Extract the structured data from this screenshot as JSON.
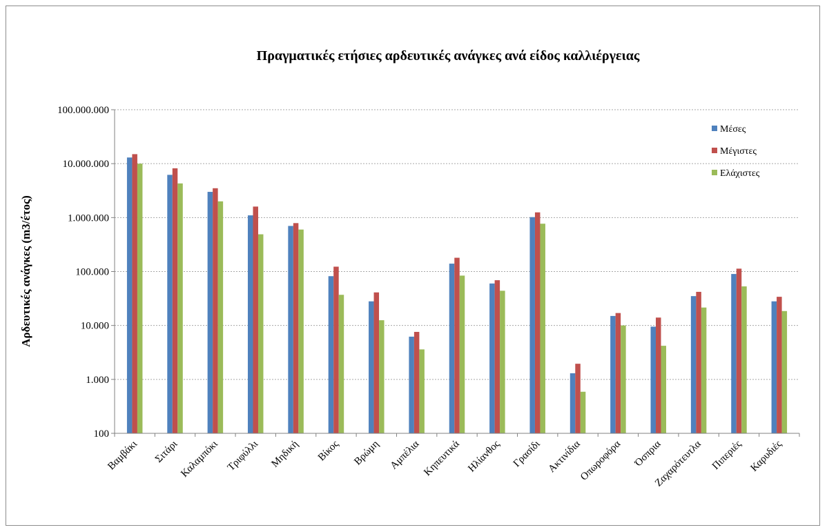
{
  "chart_data": {
    "type": "bar",
    "title": "Πραγματικές ετήσιες αρδευτικές ανάγκες ανά είδος καλλιέργειας",
    "xlabel": "",
    "ylabel": "Αρδευτικές ανάγκες (m3/έτος)",
    "yscale": "log",
    "ylim": [
      100,
      100000000
    ],
    "yticks": [
      100,
      1000,
      10000,
      100000,
      1000000,
      10000000,
      100000000
    ],
    "ytick_labels": [
      "100",
      "1.000",
      "10.000",
      "100.000",
      "1.000.000",
      "10.000.000",
      "100.000.000"
    ],
    "grid": true,
    "legend_position": "top-right",
    "categories": [
      "Βαμβάκι",
      "Σιτάρι",
      "Καλαμπόκι",
      "Τριφύλλι",
      "Μηδική",
      "Βίκος",
      "Βρώμη",
      "Αμπέλια",
      "Κηπευτικά",
      "Ηλίανθος",
      "Γρασίδι",
      "Ακτινίδια",
      "Οπωροφόρα",
      "Όσπρια",
      "Ζαχαρότευτλα",
      "Πιπεριές",
      "Καρυδιές"
    ],
    "series": [
      {
        "name": "Μέσες",
        "color": "#4f81bd",
        "values": [
          13000000,
          6200000,
          3000000,
          1100000,
          700000,
          82000,
          28000,
          6200,
          140000,
          60000,
          1020000,
          1300,
          15000,
          9500,
          35000,
          90000,
          28000
        ]
      },
      {
        "name": "Μέγιστες",
        "color": "#c0504d",
        "values": [
          15000000,
          8200000,
          3500000,
          1600000,
          790000,
          123000,
          41000,
          7600,
          180000,
          69000,
          1250000,
          1950,
          17000,
          14000,
          42000,
          113000,
          34000
        ]
      },
      {
        "name": "Ελάχιστες",
        "color": "#9bbb59",
        "values": [
          10000000,
          4300000,
          2000000,
          490000,
          600000,
          37000,
          12500,
          3600,
          84000,
          44000,
          770000,
          590,
          10000,
          4200,
          21500,
          53000,
          18500
        ]
      }
    ]
  }
}
